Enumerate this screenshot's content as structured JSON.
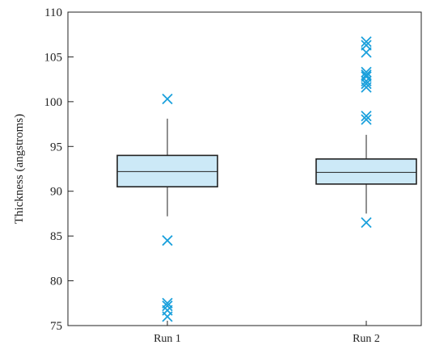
{
  "chart_data": {
    "type": "box",
    "ylabel": "Thickness (angstroms)",
    "ylim": [
      75,
      110
    ],
    "yticks": [
      75,
      80,
      85,
      90,
      95,
      100,
      105,
      110
    ],
    "categories": [
      "Run 1",
      "Run 2"
    ],
    "grid": false,
    "legend": "none",
    "box_fill": "#cce9f7",
    "outlier_color": "#1aa0dc",
    "boxes": [
      {
        "name": "Run 1",
        "whisker_low": 87.2,
        "q1": 90.5,
        "median": 92.2,
        "q3": 94.0,
        "whisker_high": 98.1,
        "outliers": [
          100.3,
          84.5,
          77.5,
          77.2,
          76.7,
          76.0
        ]
      },
      {
        "name": "Run 2",
        "whisker_low": 87.5,
        "q1": 90.8,
        "median": 92.1,
        "q3": 93.6,
        "whisker_high": 96.3,
        "outliers": [
          86.5,
          98.0,
          98.4,
          101.6,
          102.0,
          102.3,
          102.8,
          103.0,
          103.3,
          105.5,
          106.3,
          106.7
        ]
      }
    ]
  }
}
